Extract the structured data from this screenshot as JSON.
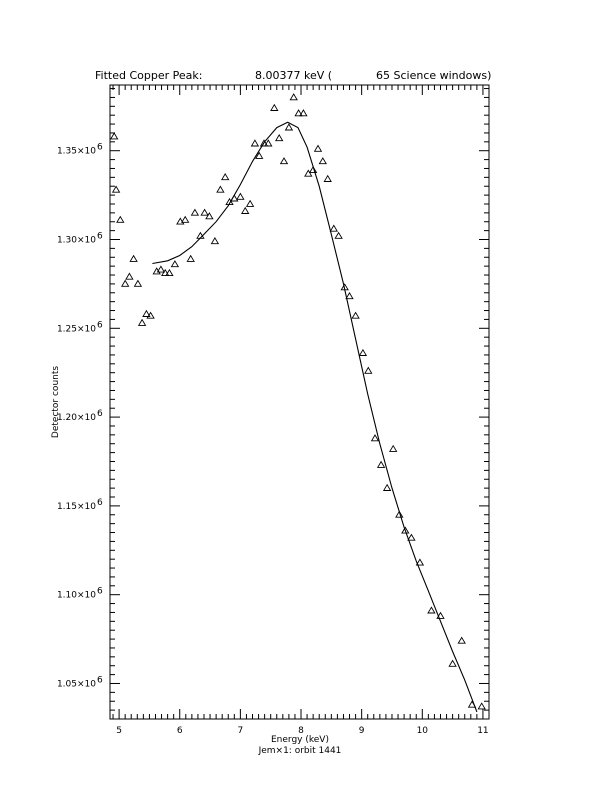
{
  "chart_data": {
    "type": "scatter",
    "title": {
      "prefix": "Fitted Copper Peak:",
      "value": "8.00377 keV (",
      "suffix": "65 Science windows)"
    },
    "xlabel": "Energy (keV)",
    "ylabel": "Detector counts",
    "subtitle": "Jem×1: orbit 1441",
    "xlim": [
      4.85,
      11.1
    ],
    "ylim": [
      1030000,
      1387000
    ],
    "x_ticks": [
      5,
      6,
      7,
      8,
      9,
      10,
      11
    ],
    "x_tick_labels": [
      "5",
      "6",
      "7",
      "8",
      "9",
      "10",
      "11"
    ],
    "y_ticks": [
      1050000,
      1100000,
      1150000,
      1200000,
      1250000,
      1300000,
      1350000
    ],
    "y_tick_labels": [
      {
        "mantissa": "1.05×10",
        "exponent": "6"
      },
      {
        "mantissa": "1.10×10",
        "exponent": "6"
      },
      {
        "mantissa": "1.15×10",
        "exponent": "6"
      },
      {
        "mantissa": "1.20×10",
        "exponent": "6"
      },
      {
        "mantissa": "1.25×10",
        "exponent": "6"
      },
      {
        "mantissa": "1.30×10",
        "exponent": "6"
      },
      {
        "mantissa": "1.35×10",
        "exponent": "6"
      }
    ],
    "grid": false,
    "marker": "triangle",
    "series": [
      {
        "marker": "triangle",
        "points": [
          {
            "x": 4.92,
            "y": 1358000
          },
          {
            "x": 4.95,
            "y": 1328000
          },
          {
            "x": 5.02,
            "y": 1311000
          },
          {
            "x": 5.1,
            "y": 1275000
          },
          {
            "x": 5.17,
            "y": 1279000
          },
          {
            "x": 5.24,
            "y": 1289000
          },
          {
            "x": 5.31,
            "y": 1275000
          },
          {
            "x": 5.38,
            "y": 1253000
          },
          {
            "x": 5.45,
            "y": 1258000
          },
          {
            "x": 5.52,
            "y": 1257000
          },
          {
            "x": 5.62,
            "y": 1282000
          },
          {
            "x": 5.69,
            "y": 1283000
          },
          {
            "x": 5.76,
            "y": 1281000
          },
          {
            "x": 5.83,
            "y": 1281000
          },
          {
            "x": 5.92,
            "y": 1286000
          },
          {
            "x": 6.01,
            "y": 1310000
          },
          {
            "x": 6.09,
            "y": 1311000
          },
          {
            "x": 6.18,
            "y": 1289000
          },
          {
            "x": 6.25,
            "y": 1315000
          },
          {
            "x": 6.34,
            "y": 1302000
          },
          {
            "x": 6.41,
            "y": 1315000
          },
          {
            "x": 6.49,
            "y": 1313000
          },
          {
            "x": 6.58,
            "y": 1299000
          },
          {
            "x": 6.67,
            "y": 1328000
          },
          {
            "x": 6.75,
            "y": 1335000
          },
          {
            "x": 6.82,
            "y": 1321000
          },
          {
            "x": 6.9,
            "y": 1323000
          },
          {
            "x": 7.0,
            "y": 1324000
          },
          {
            "x": 7.08,
            "y": 1316000
          },
          {
            "x": 7.16,
            "y": 1320000
          },
          {
            "x": 7.24,
            "y": 1354000
          },
          {
            "x": 7.31,
            "y": 1347000
          },
          {
            "x": 7.39,
            "y": 1354000
          },
          {
            "x": 7.46,
            "y": 1354000
          },
          {
            "x": 7.56,
            "y": 1374000
          },
          {
            "x": 7.64,
            "y": 1357000
          },
          {
            "x": 7.72,
            "y": 1344000
          },
          {
            "x": 7.8,
            "y": 1363000
          },
          {
            "x": 7.88,
            "y": 1380000
          },
          {
            "x": 7.96,
            "y": 1371000
          },
          {
            "x": 8.04,
            "y": 1371000
          },
          {
            "x": 8.12,
            "y": 1337000
          },
          {
            "x": 8.2,
            "y": 1339000
          },
          {
            "x": 8.28,
            "y": 1351000
          },
          {
            "x": 8.36,
            "y": 1344000
          },
          {
            "x": 8.44,
            "y": 1334000
          },
          {
            "x": 8.54,
            "y": 1306000
          },
          {
            "x": 8.62,
            "y": 1302000
          },
          {
            "x": 8.72,
            "y": 1273000
          },
          {
            "x": 8.8,
            "y": 1268000
          },
          {
            "x": 8.9,
            "y": 1257000
          },
          {
            "x": 9.02,
            "y": 1236000
          },
          {
            "x": 9.11,
            "y": 1226000
          },
          {
            "x": 9.22,
            "y": 1188000
          },
          {
            "x": 9.32,
            "y": 1173000
          },
          {
            "x": 9.42,
            "y": 1160000
          },
          {
            "x": 9.52,
            "y": 1182000
          },
          {
            "x": 9.62,
            "y": 1145000
          },
          {
            "x": 9.72,
            "y": 1136000
          },
          {
            "x": 9.82,
            "y": 1132000
          },
          {
            "x": 9.96,
            "y": 1118000
          },
          {
            "x": 10.15,
            "y": 1091000
          },
          {
            "x": 10.3,
            "y": 1088000
          },
          {
            "x": 10.5,
            "y": 1061000
          },
          {
            "x": 10.65,
            "y": 1074000
          },
          {
            "x": 10.82,
            "y": 1038000
          },
          {
            "x": 10.98,
            "y": 1037000
          }
        ]
      },
      {
        "type": "line",
        "points": [
          {
            "x": 5.55,
            "y": 1286500
          },
          {
            "x": 5.8,
            "y": 1288000
          },
          {
            "x": 6.0,
            "y": 1291000
          },
          {
            "x": 6.2,
            "y": 1296000
          },
          {
            "x": 6.4,
            "y": 1303000
          },
          {
            "x": 6.6,
            "y": 1310000
          },
          {
            "x": 6.8,
            "y": 1319000
          },
          {
            "x": 7.0,
            "y": 1331000
          },
          {
            "x": 7.2,
            "y": 1344000
          },
          {
            "x": 7.4,
            "y": 1355000
          },
          {
            "x": 7.6,
            "y": 1363000
          },
          {
            "x": 7.78,
            "y": 1366000
          },
          {
            "x": 7.95,
            "y": 1363000
          },
          {
            "x": 8.1,
            "y": 1352000
          },
          {
            "x": 8.3,
            "y": 1330000
          },
          {
            "x": 8.5,
            "y": 1303000
          },
          {
            "x": 8.7,
            "y": 1275000
          },
          {
            "x": 8.9,
            "y": 1244000
          },
          {
            "x": 9.1,
            "y": 1213000
          },
          {
            "x": 9.3,
            "y": 1185000
          },
          {
            "x": 9.5,
            "y": 1160000
          },
          {
            "x": 9.7,
            "y": 1138000
          },
          {
            "x": 9.9,
            "y": 1119000
          },
          {
            "x": 10.1,
            "y": 1102000
          },
          {
            "x": 10.3,
            "y": 1085000
          },
          {
            "x": 10.5,
            "y": 1068000
          },
          {
            "x": 10.7,
            "y": 1052000
          },
          {
            "x": 10.9,
            "y": 1034000
          }
        ]
      }
    ]
  }
}
